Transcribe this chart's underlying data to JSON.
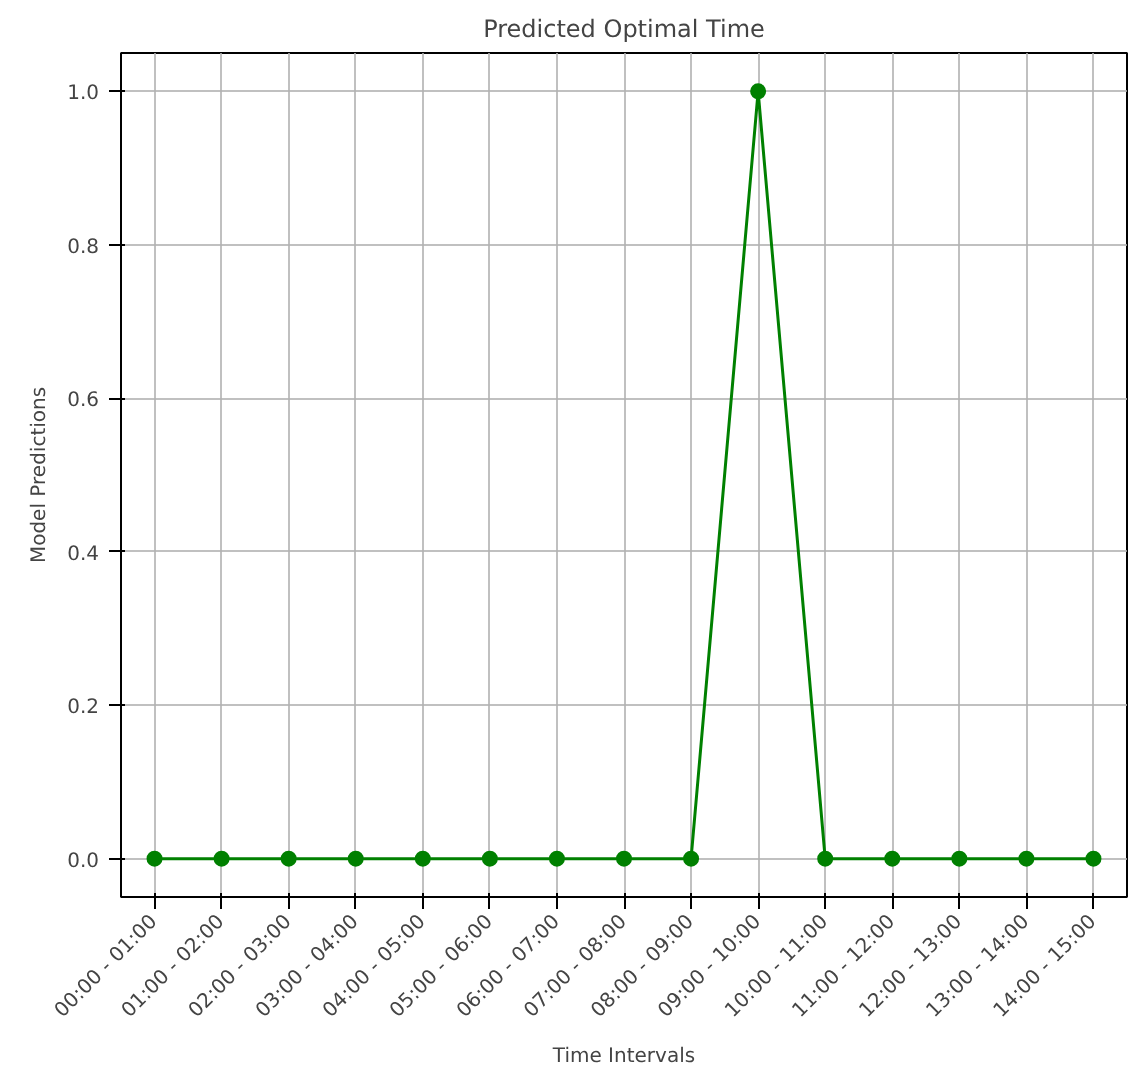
{
  "chart_data": {
    "type": "line",
    "title": "Predicted Optimal Time",
    "xlabel": "Time Intervals",
    "ylabel": "Model Predictions",
    "categories": [
      "00:00 - 01:00",
      "01:00 - 02:00",
      "02:00 - 03:00",
      "03:00 - 04:00",
      "04:00 - 05:00",
      "05:00 - 06:00",
      "06:00 - 07:00",
      "07:00 - 08:00",
      "08:00 - 09:00",
      "09:00 - 10:00",
      "10:00 - 11:00",
      "11:00 - 12:00",
      "12:00 - 13:00",
      "13:00 - 14:00",
      "14:00 - 15:00"
    ],
    "series": [
      {
        "color": "#008000",
        "values": [
          0,
          0,
          0,
          0,
          0,
          0,
          0,
          0,
          0,
          1.0,
          0,
          0,
          0,
          0,
          0
        ]
      }
    ],
    "ylim": [
      -0.05,
      1.05
    ],
    "yticks": [
      {
        "value": 0,
        "label": "0.0"
      },
      0.2,
      0.4,
      0.6,
      0.8,
      {
        "value": 1,
        "label": "1.0"
      }
    ],
    "grid": true,
    "marker": "circle",
    "line_style": "solid"
  }
}
